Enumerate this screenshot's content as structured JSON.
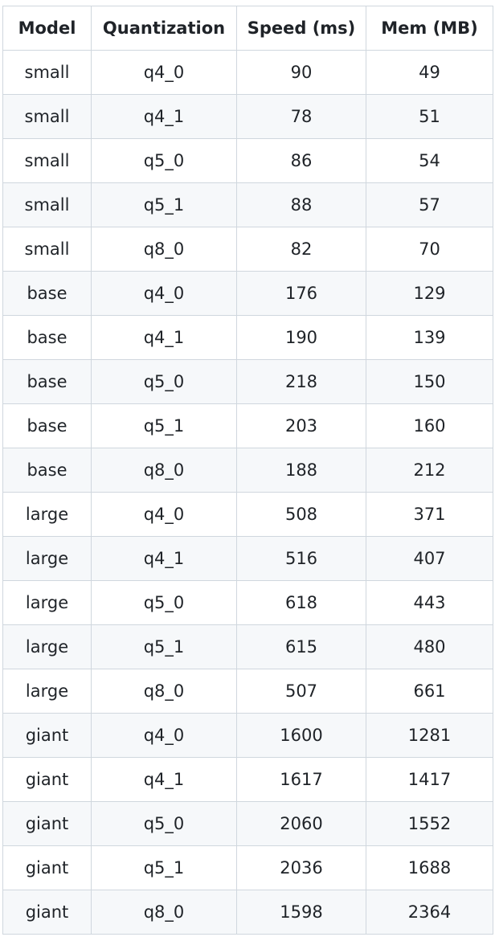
{
  "table": {
    "headers": [
      "Model",
      "Quantization",
      "Speed (ms)",
      "Mem (MB)"
    ],
    "rows": [
      [
        "small",
        "q4_0",
        "90",
        "49"
      ],
      [
        "small",
        "q4_1",
        "78",
        "51"
      ],
      [
        "small",
        "q5_0",
        "86",
        "54"
      ],
      [
        "small",
        "q5_1",
        "88",
        "57"
      ],
      [
        "small",
        "q8_0",
        "82",
        "70"
      ],
      [
        "base",
        "q4_0",
        "176",
        "129"
      ],
      [
        "base",
        "q4_1",
        "190",
        "139"
      ],
      [
        "base",
        "q5_0",
        "218",
        "150"
      ],
      [
        "base",
        "q5_1",
        "203",
        "160"
      ],
      [
        "base",
        "q8_0",
        "188",
        "212"
      ],
      [
        "large",
        "q4_0",
        "508",
        "371"
      ],
      [
        "large",
        "q4_1",
        "516",
        "407"
      ],
      [
        "large",
        "q5_0",
        "618",
        "443"
      ],
      [
        "large",
        "q5_1",
        "615",
        "480"
      ],
      [
        "large",
        "q8_0",
        "507",
        "661"
      ],
      [
        "giant",
        "q4_0",
        "1600",
        "1281"
      ],
      [
        "giant",
        "q4_1",
        "1617",
        "1417"
      ],
      [
        "giant",
        "q5_0",
        "2060",
        "1552"
      ],
      [
        "giant",
        "q5_1",
        "2036",
        "1688"
      ],
      [
        "giant",
        "q8_0",
        "1598",
        "2364"
      ]
    ]
  }
}
